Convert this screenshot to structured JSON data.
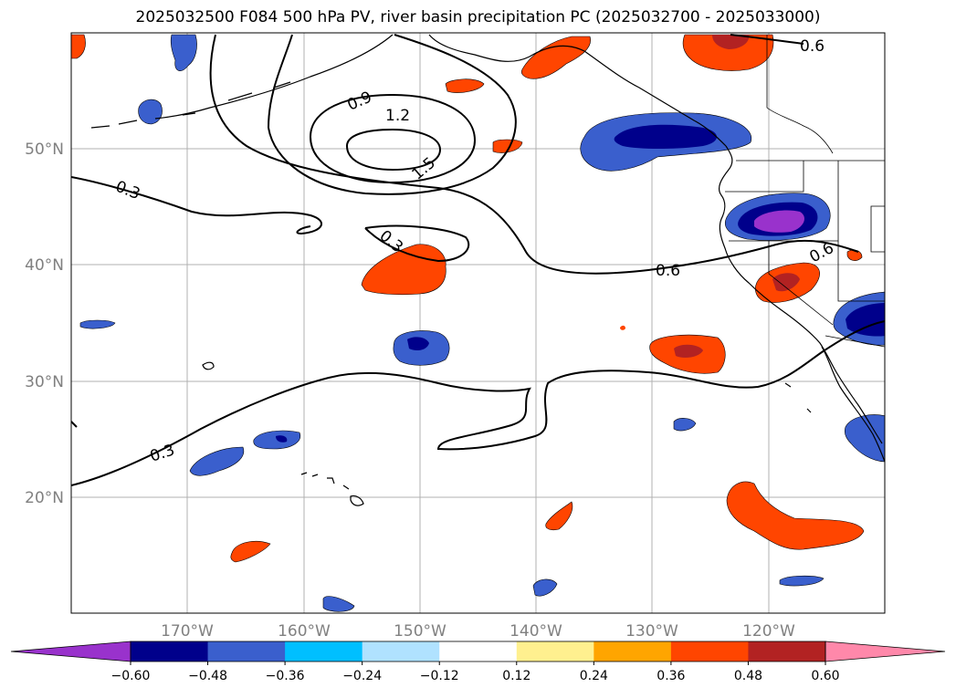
{
  "title": "2025032500 F084 500 hPa PV, river basin precipitation PC (2025032700 - 2025033000)",
  "axes": {
    "lon_ticks": [
      "170°W",
      "160°W",
      "150°W",
      "140°W",
      "130°W",
      "120°W"
    ],
    "lat_ticks": [
      "50°N",
      "40°N",
      "30°N",
      "20°N"
    ]
  },
  "contour_labels": [
    "0.3",
    "0.6",
    "0.9",
    "1.2",
    "1.5"
  ],
  "colorbar": {
    "colors": [
      "#9932cc",
      "#00008b",
      "#3a5fcd",
      "#00bfff",
      "#b0e2ff",
      "#ffffff",
      "#fff08f",
      "#ffa500",
      "#ff4500",
      "#b22222",
      "#ff88aa"
    ],
    "tick_labels": [
      "−0.60",
      "−0.48",
      "−0.36",
      "−0.24",
      "−0.12",
      "0.12",
      "0.24",
      "0.36",
      "0.48",
      "0.60"
    ]
  },
  "colors": {
    "gridline": "#b0b0b0",
    "tick_label": "#808080",
    "contour": "#000000"
  }
}
